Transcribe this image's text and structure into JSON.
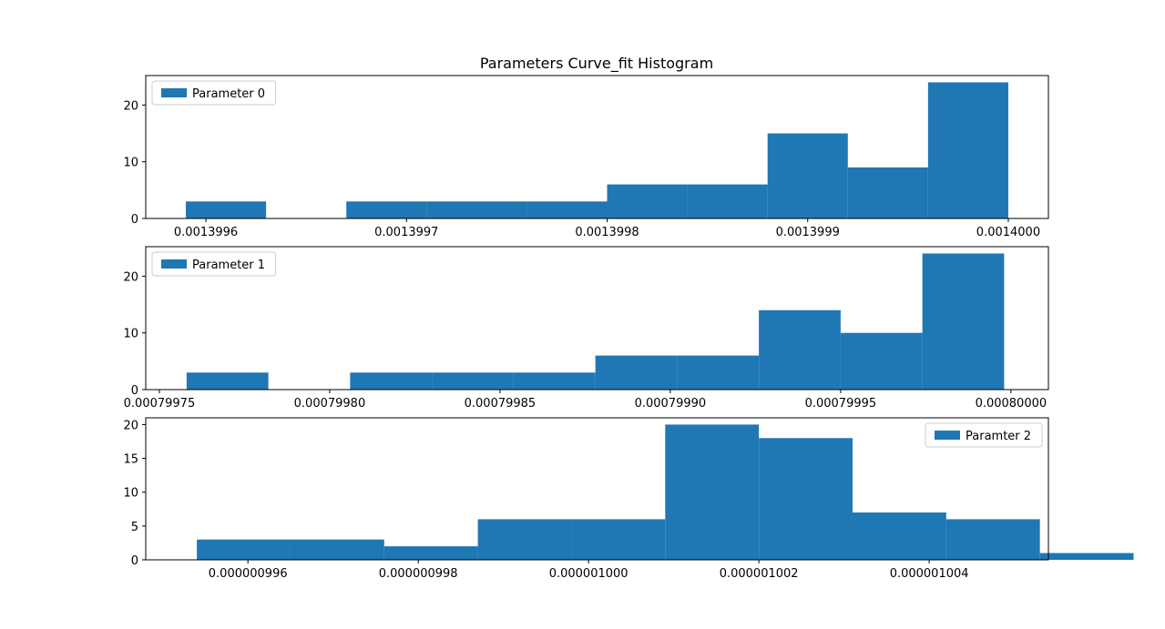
{
  "figure": {
    "title": "Parameters Curve_fit Histogram"
  },
  "chart_data": [
    {
      "type": "bar",
      "title": "",
      "legend": "Parameter 0",
      "legend_position": "top-left",
      "color": "#1f77b4",
      "xlim": [
        0.00139957,
        0.00140002
      ],
      "ylim": [
        0,
        25.2
      ],
      "x_ticks": [
        {
          "value": 0.0013996,
          "label": "0.0013996"
        },
        {
          "value": 0.0013997,
          "label": "0.0013997"
        },
        {
          "value": 0.0013998,
          "label": "0.0013998"
        },
        {
          "value": 0.0013999,
          "label": "0.0013999"
        },
        {
          "value": 0.0014,
          "label": "0.0014000"
        }
      ],
      "y_ticks": [
        0,
        10,
        20
      ],
      "bins": [
        {
          "x0": 0.00139959,
          "x1": 0.00139963,
          "count": 3
        },
        {
          "x0": 0.00139963,
          "x1": 0.00139967,
          "count": 0
        },
        {
          "x0": 0.00139967,
          "x1": 0.00139971,
          "count": 3
        },
        {
          "x0": 0.00139971,
          "x1": 0.00139976,
          "count": 3
        },
        {
          "x0": 0.00139976,
          "x1": 0.0013998,
          "count": 3
        },
        {
          "x0": 0.0013998,
          "x1": 0.00139984,
          "count": 6
        },
        {
          "x0": 0.00139984,
          "x1": 0.00139988,
          "count": 6
        },
        {
          "x0": 0.00139988,
          "x1": 0.00139992,
          "count": 15
        },
        {
          "x0": 0.00139992,
          "x1": 0.00139996,
          "count": 9
        },
        {
          "x0": 0.00139996,
          "x1": 0.0014,
          "count": 24
        }
      ]
    },
    {
      "type": "bar",
      "title": "",
      "legend": "Parameter 1",
      "legend_position": "top-left",
      "color": "#1f77b4",
      "xlim": [
        0.000799746,
        0.000800011
      ],
      "ylim": [
        0,
        25.2
      ],
      "x_ticks": [
        {
          "value": 0.00079975,
          "label": "0.00079975"
        },
        {
          "value": 0.0007998,
          "label": "0.00079980"
        },
        {
          "value": 0.00079985,
          "label": "0.00079985"
        },
        {
          "value": 0.0007999,
          "label": "0.00079990"
        },
        {
          "value": 0.00079995,
          "label": "0.00079995"
        },
        {
          "value": 0.0008,
          "label": "0.00080000"
        }
      ],
      "y_ticks": [
        0,
        10,
        20
      ],
      "bins": [
        {
          "x0": 0.000799758,
          "x1": 0.000799782,
          "count": 3
        },
        {
          "x0": 0.000799782,
          "x1": 0.000799806,
          "count": 0
        },
        {
          "x0": 0.000799806,
          "x1": 0.00079983,
          "count": 3
        },
        {
          "x0": 0.00079983,
          "x1": 0.000799854,
          "count": 3
        },
        {
          "x0": 0.000799854,
          "x1": 0.000799878,
          "count": 3
        },
        {
          "x0": 0.000799878,
          "x1": 0.000799902,
          "count": 6
        },
        {
          "x0": 0.000799902,
          "x1": 0.000799926,
          "count": 6
        },
        {
          "x0": 0.000799926,
          "x1": 0.00079995,
          "count": 14
        },
        {
          "x0": 0.00079995,
          "x1": 0.000799974,
          "count": 10
        },
        {
          "x0": 0.000799974,
          "x1": 0.000799998,
          "count": 24
        }
      ]
    },
    {
      "type": "bar",
      "title": "",
      "legend": "Paramter 2",
      "legend_position": "top-right",
      "color": "#1f77b4",
      "xlim": [
        9.948e-07,
        1.0054e-06
      ],
      "ylim": [
        0,
        21
      ],
      "x_ticks": [
        {
          "value": 9.96e-07,
          "label": "0.000000996"
        },
        {
          "value": 9.98e-07,
          "label": "0.000000998"
        },
        {
          "value": 1e-06,
          "label": "0.000001000"
        },
        {
          "value": 1.002e-06,
          "label": "0.000001002"
        },
        {
          "value": 1.004e-06,
          "label": "0.000001004"
        }
      ],
      "y_ticks": [
        0,
        5,
        10,
        15,
        20
      ],
      "bins": [
        {
          "x0": 9.954e-07,
          "x1": 9.965e-07,
          "count": 3
        },
        {
          "x0": 9.965e-07,
          "x1": 9.976e-07,
          "count": 3
        },
        {
          "x0": 9.976e-07,
          "x1": 9.987e-07,
          "count": 2
        },
        {
          "x0": 9.987e-07,
          "x1": 9.998e-07,
          "count": 6
        },
        {
          "x0": 9.998e-07,
          "x1": 1.0009e-06,
          "count": 6
        },
        {
          "x0": 1.0009e-06,
          "x1": 1.002e-06,
          "count": 20
        },
        {
          "x0": 1.002e-06,
          "x1": 1.0031e-06,
          "count": 18
        },
        {
          "x0": 1.0031e-06,
          "x1": 1.0042e-06,
          "count": 7
        },
        {
          "x0": 1.0042e-06,
          "x1": 1.0053e-06,
          "count": 6
        },
        {
          "x0": 1.0053e-06,
          "x1": 1.0064e-06,
          "count": 1
        }
      ]
    }
  ]
}
